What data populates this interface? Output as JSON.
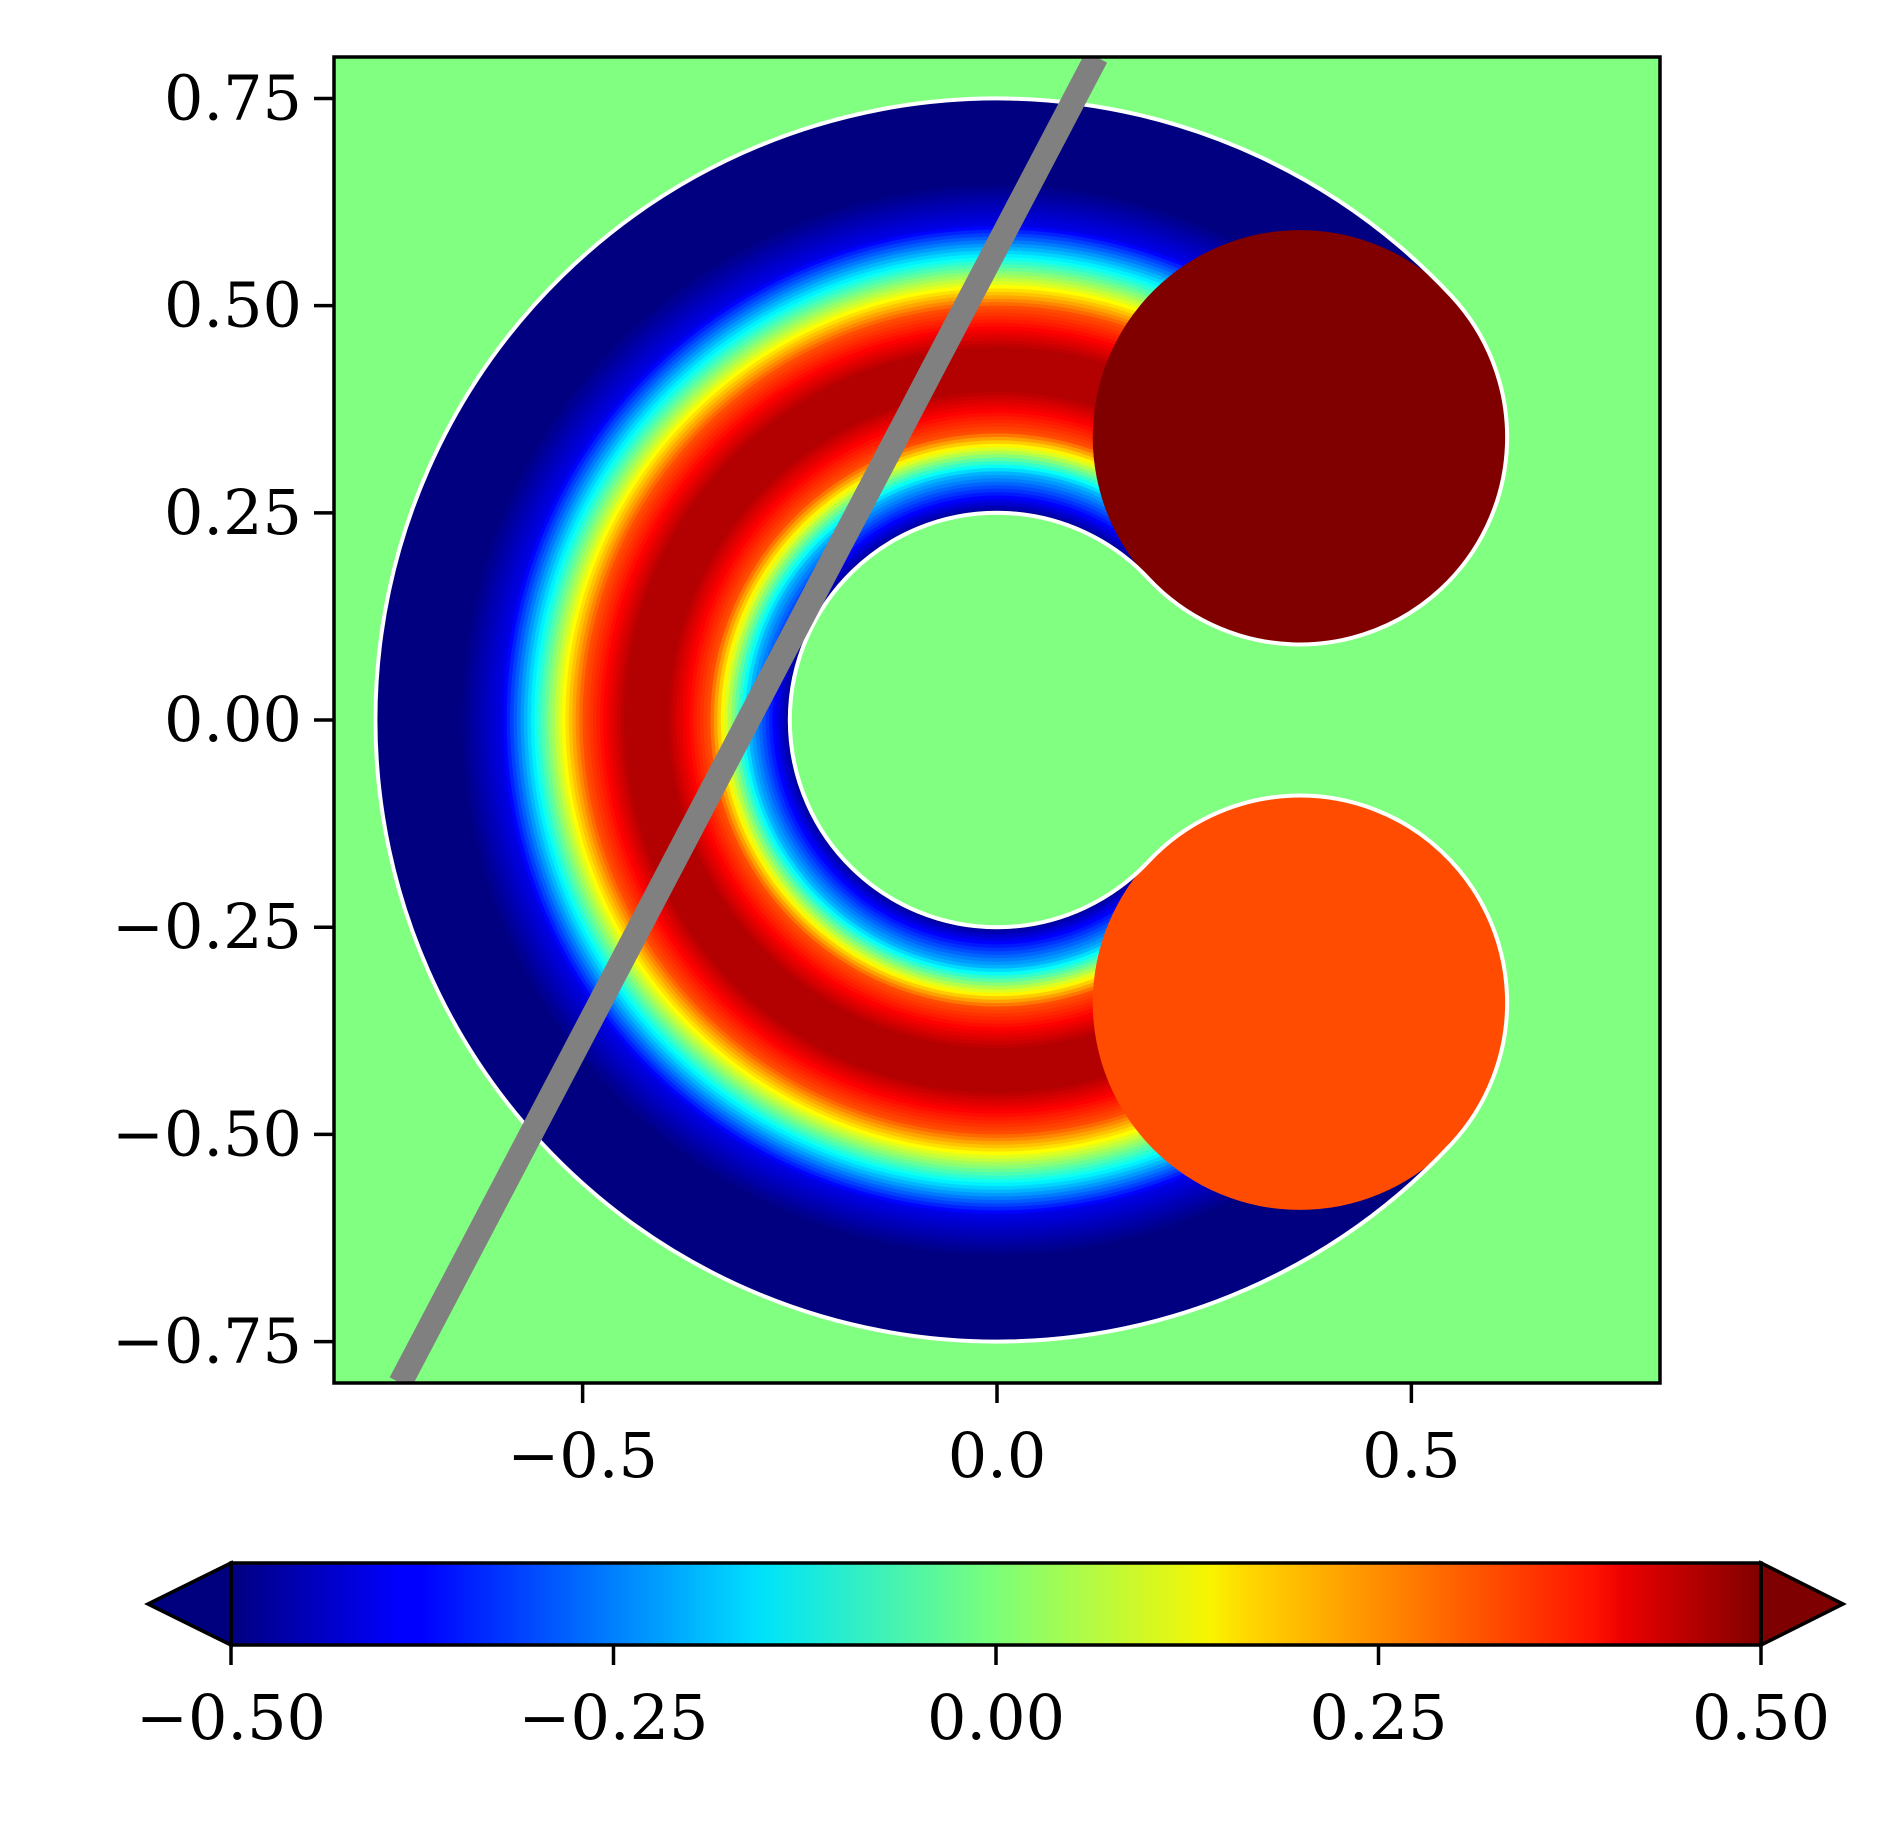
{
  "chart_data": {
    "type": "heatmap",
    "title": "",
    "xlabel": "",
    "ylabel": "",
    "xlim": [
      -0.8,
      0.8
    ],
    "ylim": [
      -0.8,
      0.8
    ],
    "x_ticks": [
      -0.5,
      0.0,
      0.5
    ],
    "x_tick_labels": [
      "−0.5",
      "0.0",
      "0.5"
    ],
    "y_ticks": [
      0.75,
      0.5,
      0.25,
      0.0,
      -0.25,
      -0.5,
      -0.75
    ],
    "y_tick_labels": [
      "0.75",
      "0.50",
      "0.25",
      "0.00",
      "−0.25",
      "−0.50",
      "−0.75"
    ],
    "grid": false,
    "background_value": 0.0,
    "colormap": "jet",
    "colorbar": {
      "orientation": "horizontal",
      "placement": "bottom",
      "range": [
        -0.5,
        0.5
      ],
      "extend": "both",
      "ticks": [
        -0.5,
        -0.25,
        0.0,
        0.25,
        0.5
      ],
      "tick_labels": [
        "−0.50",
        "−0.25",
        "0.00",
        "0.25",
        "0.50"
      ]
    },
    "domain": {
      "shape": "C-shaped annulus",
      "center": [
        0.0,
        0.0
      ],
      "inner_radius": 0.25,
      "outer_radius": 0.75,
      "opening_direction": "right",
      "upper_arm_end": [
        0.45,
        0.42
      ],
      "lower_arm_end": [
        0.45,
        -0.42
      ],
      "outline_color": "#ffffff"
    },
    "field_profile": {
      "radii": [
        0.25,
        0.3,
        0.35,
        0.4,
        0.45,
        0.5,
        0.55,
        0.6,
        0.65,
        0.7,
        0.75
      ],
      "values": [
        -0.5,
        -0.2,
        0.3,
        0.45,
        0.45,
        0.3,
        -0.05,
        -0.4,
        -0.5,
        -0.5,
        -0.5
      ]
    },
    "cut_line": {
      "color": "#808080",
      "points": [
        [
          -0.72,
          -0.8
        ],
        [
          0.12,
          0.8
        ]
      ]
    },
    "colors": {
      "background": "#80ff80",
      "cut_line": "#808080"
    }
  }
}
